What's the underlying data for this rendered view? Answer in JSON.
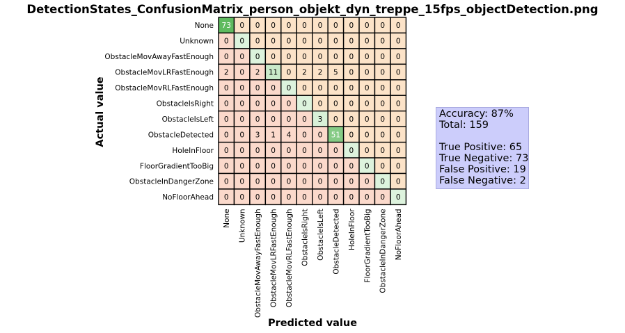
{
  "title": "DetectionStates_ConfusionMatrix_person_objekt_dyn_treppe_15fps_objectDetection.png",
  "chart_data": {
    "type": "heatmap",
    "xlabel": "Predicted value",
    "ylabel": "Actual value",
    "labels": [
      "None",
      "Unknown",
      "ObstacleMovAwayFastEnough",
      "ObstacleMovLRFastEnough",
      "ObstacleMovRLFastEnough",
      "ObstacleIsRight",
      "ObstacleIsLeft",
      "ObstacleDetected",
      "HoleInFloor",
      "FloorGradientTooBig",
      "ObstacleInDangerZone",
      "NoFloorAhead"
    ],
    "matrix": [
      [
        73,
        0,
        0,
        0,
        0,
        0,
        0,
        0,
        0,
        0,
        0,
        0
      ],
      [
        0,
        0,
        0,
        0,
        0,
        0,
        0,
        0,
        0,
        0,
        0,
        0
      ],
      [
        0,
        0,
        0,
        0,
        0,
        0,
        0,
        0,
        0,
        0,
        0,
        0
      ],
      [
        2,
        0,
        2,
        11,
        0,
        2,
        2,
        5,
        0,
        0,
        0,
        0
      ],
      [
        0,
        0,
        0,
        0,
        0,
        0,
        0,
        0,
        0,
        0,
        0,
        0
      ],
      [
        0,
        0,
        0,
        0,
        0,
        0,
        0,
        0,
        0,
        0,
        0,
        0
      ],
      [
        0,
        0,
        0,
        0,
        0,
        0,
        3,
        0,
        0,
        0,
        0,
        0
      ],
      [
        0,
        0,
        3,
        1,
        4,
        0,
        0,
        51,
        0,
        0,
        0,
        0
      ],
      [
        0,
        0,
        0,
        0,
        0,
        0,
        0,
        0,
        0,
        0,
        0,
        0
      ],
      [
        0,
        0,
        0,
        0,
        0,
        0,
        0,
        0,
        0,
        0,
        0,
        0
      ],
      [
        0,
        0,
        0,
        0,
        0,
        0,
        0,
        0,
        0,
        0,
        0,
        0
      ],
      [
        0,
        0,
        0,
        0,
        0,
        0,
        0,
        0,
        0,
        0,
        0,
        0
      ]
    ],
    "colors": {
      "diagonal_zero": "#ddf3dd",
      "diagonal_max": "#5fba5f",
      "lower_off_diagonal": "#fbd9cb",
      "upper_off_diagonal": "#fce3c8"
    }
  },
  "stats": {
    "accuracy": "Accuracy: 87%",
    "total": "Total: 159",
    "true_positive": "True Positive: 65",
    "true_negative": "True Negative: 73",
    "false_positive": "False Positive: 19",
    "false_negative": "False Negative: 2"
  }
}
